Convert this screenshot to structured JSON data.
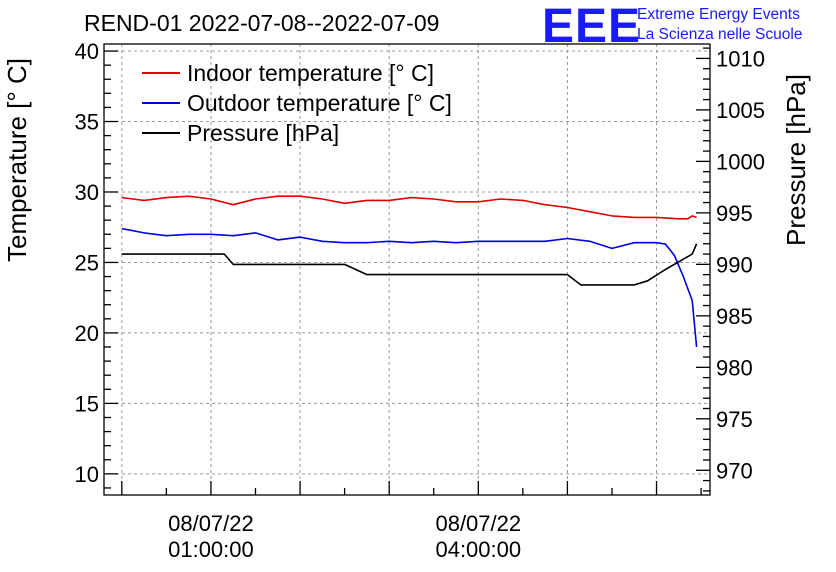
{
  "header": {
    "title": "REND-01 2022-07-08--2022-07-09",
    "logo_text": "EEE",
    "org_line1": "Extreme Energy Events",
    "org_line2": "La Scienza nelle Scuole"
  },
  "colors": {
    "indoor": "#e00000",
    "outdoor": "#0000e0",
    "pressure": "#000000",
    "logo": "#1a1aff"
  },
  "chart_data": {
    "type": "line",
    "title": "REND-01 2022-07-08--2022-07-09",
    "xlabel": "",
    "ylabel": "Temperature [° C]",
    "y2label": "Pressure [hPa]",
    "x_unit": "hours after 2022-07-08 00:00:00",
    "xlim": [
      -0.2,
      6.6
    ],
    "ylim": [
      8.5,
      40.5
    ],
    "y2lim": [
      967.6,
      1011.4
    ],
    "y_ticks": [
      10,
      15,
      20,
      25,
      30,
      35,
      40
    ],
    "y2_ticks": [
      970,
      975,
      980,
      985,
      990,
      995,
      1000,
      1005,
      1010
    ],
    "x_ticks": [
      {
        "x": 1,
        "line1": "08/07/22",
        "line2": "01:00:00"
      },
      {
        "x": 4,
        "line1": "08/07/22",
        "line2": "04:00:00"
      }
    ],
    "grid": true,
    "legend_position": "top-left",
    "series": [
      {
        "name": "Indoor temperature [° C]",
        "axis": "left",
        "x": [
          0,
          0.25,
          0.5,
          0.75,
          1.0,
          1.25,
          1.5,
          1.75,
          2.0,
          2.25,
          2.5,
          2.75,
          3.0,
          3.25,
          3.5,
          3.75,
          4.0,
          4.25,
          4.5,
          4.75,
          5.0,
          5.25,
          5.5,
          5.75,
          6.0,
          6.25,
          6.35,
          6.4,
          6.45
        ],
        "values": [
          29.6,
          29.4,
          29.6,
          29.7,
          29.5,
          29.1,
          29.5,
          29.7,
          29.7,
          29.5,
          29.2,
          29.4,
          29.4,
          29.6,
          29.5,
          29.3,
          29.3,
          29.5,
          29.4,
          29.1,
          28.9,
          28.6,
          28.3,
          28.2,
          28.2,
          28.1,
          28.1,
          28.3,
          28.2
        ]
      },
      {
        "name": "Outdoor temperature [° C]",
        "axis": "left",
        "x": [
          0,
          0.25,
          0.5,
          0.75,
          1.0,
          1.25,
          1.5,
          1.75,
          2.0,
          2.25,
          2.5,
          2.75,
          3.0,
          3.25,
          3.5,
          3.75,
          4.0,
          4.25,
          4.5,
          4.75,
          5.0,
          5.25,
          5.5,
          5.75,
          6.0,
          6.1,
          6.2,
          6.3,
          6.4,
          6.45
        ],
        "values": [
          27.4,
          27.1,
          26.9,
          27.0,
          27.0,
          26.9,
          27.1,
          26.6,
          26.8,
          26.5,
          26.4,
          26.4,
          26.5,
          26.4,
          26.5,
          26.4,
          26.5,
          26.5,
          26.5,
          26.5,
          26.7,
          26.5,
          26.0,
          26.4,
          26.4,
          26.3,
          25.5,
          24.0,
          22.3,
          19.0
        ]
      },
      {
        "name": "Pressure [hPa]",
        "axis": "right",
        "x": [
          0,
          0.5,
          1.0,
          1.15,
          1.25,
          2.5,
          2.75,
          3.0,
          3.5,
          4.0,
          4.5,
          5.0,
          5.15,
          5.25,
          5.75,
          5.9,
          6.1,
          6.3,
          6.4,
          6.45
        ],
        "values": [
          991,
          991,
          991,
          991,
          990,
          990,
          989,
          989,
          989,
          989,
          989,
          989,
          988,
          988,
          988,
          988.4,
          989.5,
          990.5,
          991,
          992
        ]
      }
    ]
  }
}
